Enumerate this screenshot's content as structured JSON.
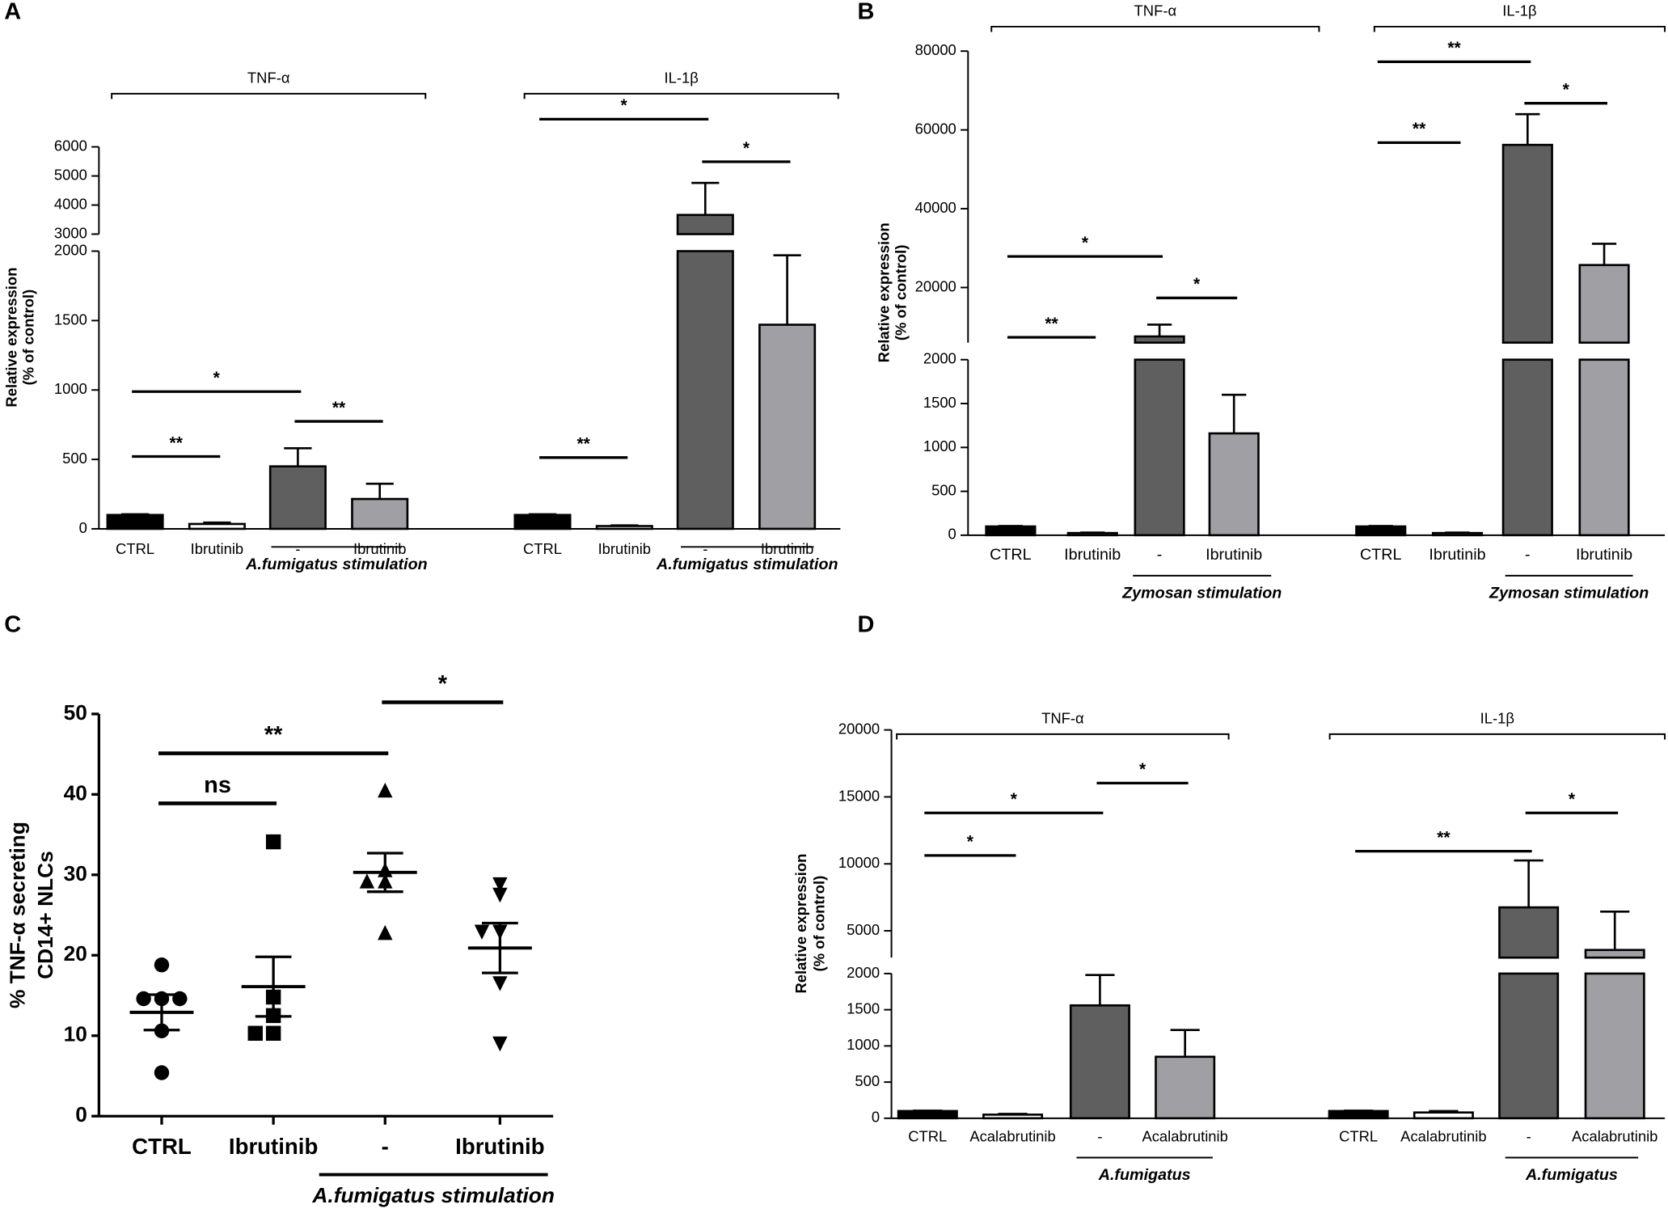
{
  "chart_data": [
    {
      "type": "bar",
      "panel": "A",
      "ylabel": [
        "Relative expression",
        "(% of control)"
      ],
      "segments": [
        {
          "ylim": [
            0,
            2000
          ],
          "yticks": [
            0,
            500,
            1000,
            1500,
            2000
          ]
        },
        {
          "ylim": [
            3000,
            6000
          ],
          "yticks": [
            3000,
            4000,
            5000,
            6000
          ]
        }
      ],
      "colors": [
        "#000000",
        "#ffffff",
        "#5f5f5f",
        "#a0a0a4"
      ],
      "groups": [
        {
          "name": "TNF-α",
          "categories": [
            "CTRL",
            "Ibrutinib",
            "-",
            "Ibrutinib"
          ],
          "values": [
            100,
            35,
            450,
            215
          ],
          "errors": [
            5,
            10,
            130,
            110
          ],
          "stimulation": "A.fumigatus stimulation",
          "comparisons": [
            {
              "from": 0,
              "to": 1,
              "label": "**"
            },
            {
              "from": 0,
              "to": 2,
              "label": "*"
            },
            {
              "from": 2,
              "to": 3,
              "label": "**"
            }
          ]
        },
        {
          "name": "IL-1β",
          "categories": [
            "CTRL",
            "Ibrutinib",
            "-",
            "Ibrutinib"
          ],
          "values": [
            100,
            20,
            3660,
            1470
          ],
          "errors": [
            5,
            5,
            1100,
            500
          ],
          "stimulation": "A.fumigatus stimulation",
          "comparisons": [
            {
              "from": 0,
              "to": 1,
              "label": "**"
            },
            {
              "from": 0,
              "to": 2,
              "label": "*"
            },
            {
              "from": 2,
              "to": 3,
              "label": "*"
            }
          ]
        }
      ]
    },
    {
      "type": "bar",
      "panel": "B",
      "ylabel": [
        "Relative expression",
        "(% of control)"
      ],
      "segments": [
        {
          "ylim": [
            0,
            2000
          ],
          "yticks": [
            0,
            500,
            1000,
            1500,
            2000
          ]
        },
        {
          "ylim": [
            6000,
            80000
          ],
          "yticks": [
            20000,
            40000,
            60000,
            80000
          ]
        }
      ],
      "colors": [
        "#000000",
        "#ffffff",
        "#5f5f5f",
        "#a0a0a4"
      ],
      "groups": [
        {
          "name": "TNF-α",
          "categories": [
            "CTRL",
            "Ibrutinib",
            "-",
            "Ibrutinib"
          ],
          "values": [
            100,
            25,
            7570,
            1160
          ],
          "errors": [
            5,
            5,
            3000,
            440
          ],
          "stimulation": "Zymosan stimulation",
          "comparisons": [
            {
              "from": 0,
              "to": 1,
              "label": "**"
            },
            {
              "from": 0,
              "to": 2,
              "label": "*"
            },
            {
              "from": 2,
              "to": 3,
              "label": "*"
            }
          ]
        },
        {
          "name": "IL-1β",
          "categories": [
            "CTRL",
            "Ibrutinib",
            "-",
            "Ibrutinib"
          ],
          "values": [
            100,
            25,
            56200,
            25700
          ],
          "errors": [
            5,
            5,
            7800,
            5400
          ],
          "stimulation": "Zymosan stimulation",
          "comparisons": [
            {
              "from": 0,
              "to": 1,
              "label": "**"
            },
            {
              "from": 0,
              "to": 2,
              "label": "**"
            },
            {
              "from": 2,
              "to": 3,
              "label": "*"
            }
          ]
        }
      ]
    },
    {
      "type": "scatter",
      "panel": "C",
      "ylabel": [
        "% TNF-α secreting",
        "CD14+ NLCs"
      ],
      "ylim": [
        0,
        50
      ],
      "yticks": [
        0,
        10,
        20,
        30,
        40,
        50
      ],
      "categories": [
        "CTRL",
        "Ibrutinib",
        "-",
        "Ibrutinib"
      ],
      "markers": [
        "circle",
        "square",
        "triangle-up",
        "triangle-down"
      ],
      "points": [
        [
          18.8,
          14.6,
          14.6,
          14.6,
          10.6,
          5.4
        ],
        [
          34.1,
          14.8,
          12.5,
          10.3,
          10.3
        ],
        [
          40.4,
          30.5,
          29.1,
          29.1,
          22.7
        ],
        [
          28.9,
          27.6,
          23.0,
          23.0,
          16.6,
          9.1
        ]
      ],
      "mean": [
        12.9,
        16.1,
        30.3,
        20.9
      ],
      "sem": [
        2.2,
        3.7,
        2.4,
        3.1
      ],
      "stimulation": "A.fumigatus stimulation",
      "comparisons": [
        {
          "from": 0,
          "to": 1,
          "label": "ns"
        },
        {
          "from": 0,
          "to": 2,
          "label": "**"
        },
        {
          "from": 2,
          "to": 3,
          "label": "*"
        }
      ]
    },
    {
      "type": "bar",
      "panel": "D",
      "ylabel": [
        "Relative expression",
        "(% of control)"
      ],
      "segments": [
        {
          "ylim": [
            0,
            2000
          ],
          "yticks": [
            0,
            500,
            1000,
            1500,
            2000
          ]
        },
        {
          "ylim": [
            3000,
            20000
          ],
          "yticks": [
            5000,
            10000,
            15000,
            20000
          ]
        }
      ],
      "colors": [
        "#000000",
        "#ffffff",
        "#5f5f5f",
        "#a0a0a4"
      ],
      "groups": [
        {
          "name": "TNF-α",
          "categories": [
            "CTRL",
            "Acalabrutinib",
            "-",
            "Acalabrutinib"
          ],
          "values": [
            100,
            50,
            1560,
            850
          ],
          "errors": [
            5,
            10,
            420,
            370
          ],
          "stimulation": "A.fumigatus",
          "comparisons": [
            {
              "from": 0,
              "to": 1,
              "label": "*"
            },
            {
              "from": 0,
              "to": 2,
              "label": "*"
            },
            {
              "from": 2,
              "to": 3,
              "label": "*"
            }
          ]
        },
        {
          "name": "IL-1β",
          "categories": [
            "CTRL",
            "Acalabrutinib",
            "-",
            "Acalabrutinib"
          ],
          "values": [
            100,
            80,
            6750,
            3570
          ],
          "errors": [
            5,
            20,
            3500,
            2860
          ],
          "stimulation": "A.fumigatus",
          "comparisons": [
            {
              "from": 0,
              "to": 2,
              "label": "**"
            },
            {
              "from": 2,
              "to": 3,
              "label": "*"
            }
          ]
        }
      ]
    }
  ]
}
